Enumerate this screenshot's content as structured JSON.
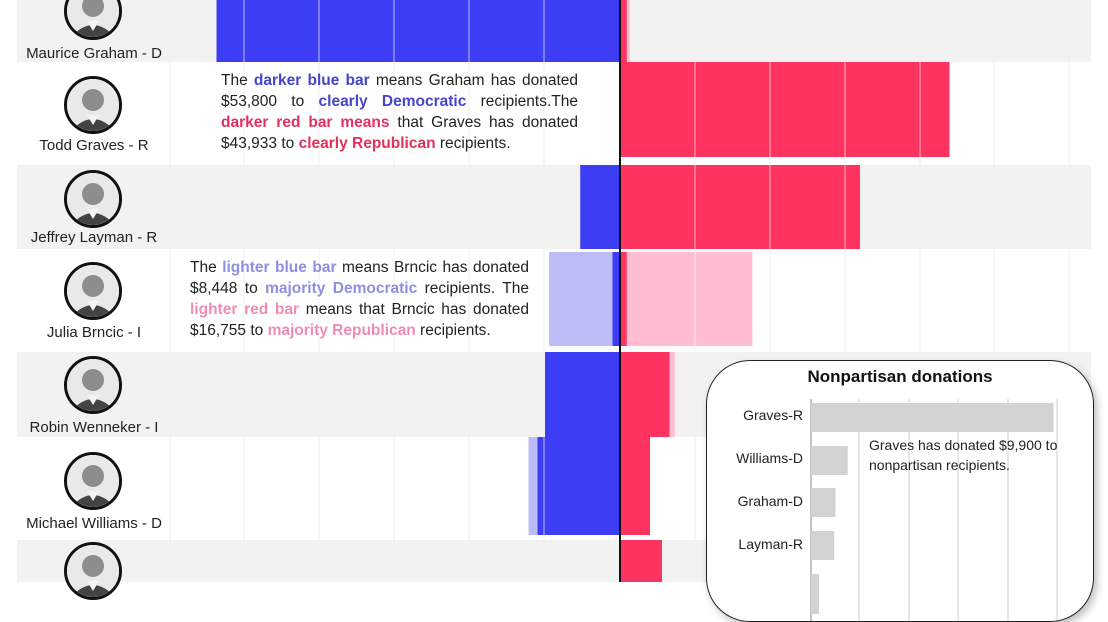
{
  "chart_data": [
    {
      "type": "bar",
      "orientation": "horizontal-diverging",
      "categories": [
        "Maurice Graham - D",
        "Todd Graves - R",
        "Jeffrey Layman - R",
        "Julia Brncic - I",
        "Robin Wenneker - I",
        "Michael Williams - D"
      ],
      "series": [
        {
          "name": "clearly Democratic",
          "color": "#3d3df5",
          "values": [
            53800,
            null,
            5300,
            1000,
            10000,
            11000
          ]
        },
        {
          "name": "majority Democratic",
          "color": "#bcbcf6",
          "values": [
            null,
            null,
            null,
            8448,
            null,
            1200
          ]
        },
        {
          "name": "clearly Republican",
          "color": "#ff3360",
          "values": [
            900,
            43933,
            32000,
            900,
            6600,
            4000
          ]
        },
        {
          "name": "majority Republican",
          "color": "#ffbdd2",
          "values": [
            400,
            null,
            null,
            16755,
            700,
            null
          ]
        }
      ],
      "grid": true,
      "annotations": {
        "graham": {
          "p1": "The ",
          "k1": "darker blue bar",
          "p2": " means Graham has donated $53,800 to ",
          "k2": "clearly Democratic",
          "p3": " recipients.The ",
          "k3": "darker red bar means",
          "p4": " that Graves has donated $43,933 to ",
          "k4": "clearly Republican",
          "p5": " recipients."
        },
        "brncic": {
          "p1": "The ",
          "k1": "lighter blue bar",
          "p2": " means Brncic has donated $8,448 to ",
          "k2": "majority Democratic",
          "p3": " recipients. The ",
          "k3": "lighter red bar",
          "p4": " means that Brncic has donated $16,755 to ",
          "k4": "majority Republican",
          "p5": " recipients."
        }
      }
    },
    {
      "type": "bar",
      "orientation": "horizontal",
      "title": "Nonpartisan donations",
      "categories": [
        "Graves-R",
        "Williams-D",
        "Graham-D",
        "Layman-R"
      ],
      "values": [
        9900,
        1500,
        1000,
        950
      ],
      "color": "#d3d3d3",
      "grid": true,
      "annotation": "Graves has donated $9,900 to nonpartisan recipients."
    }
  ]
}
